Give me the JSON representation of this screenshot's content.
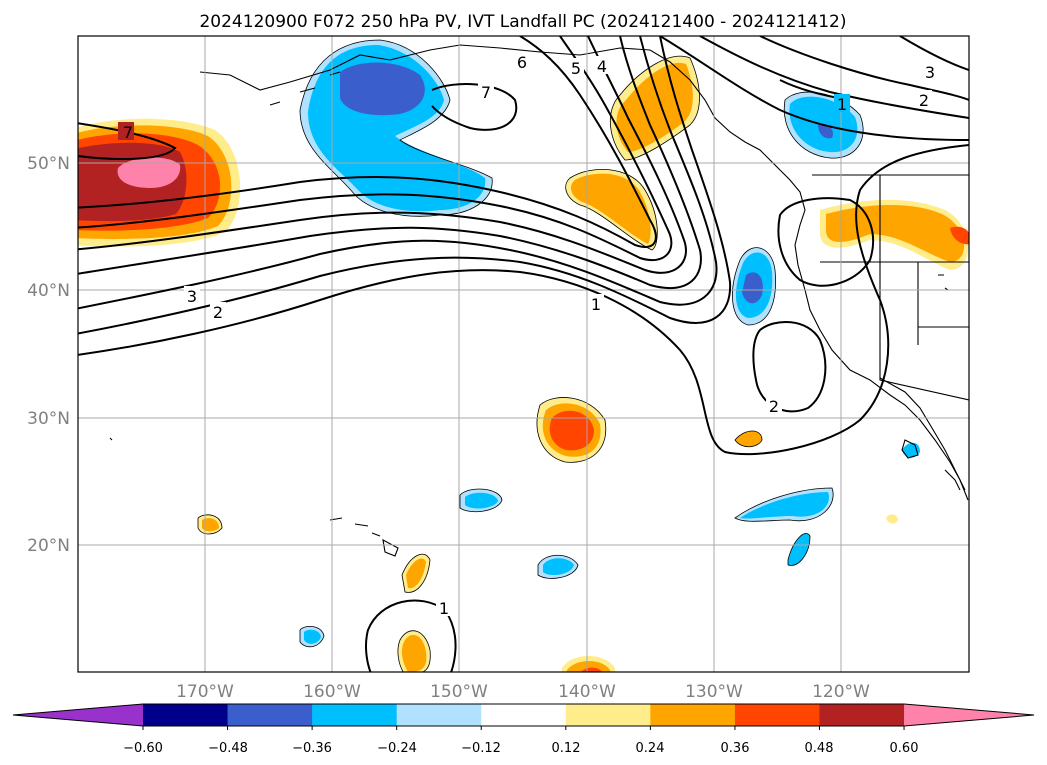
{
  "title": "2024120900 F072 250 hPa PV, IVT Landfall PC (2024121400 - 2024121412)",
  "lat_labels": [
    "50°N",
    "40°N",
    "30°N",
    "20°N"
  ],
  "lon_labels": [
    "170°W",
    "160°W",
    "150°W",
    "140°W",
    "130°W",
    "120°W"
  ],
  "colorbar": {
    "ticks": [
      "−0.60",
      "−0.48",
      "−0.36",
      "−0.24",
      "−0.12",
      "0.12",
      "0.24",
      "0.36",
      "0.48",
      "0.60"
    ],
    "colors": [
      "#9932cc",
      "#00008b",
      "#3a5fcd",
      "#00bfff",
      "#b0e2ff",
      "#ffffff",
      "#ffec8b",
      "#ffa500",
      "#ff4500",
      "#b22222",
      "#ff82ab"
    ]
  },
  "pv_contour_labels": [
    "7",
    "7",
    "6",
    "5",
    "4",
    "3",
    "2",
    "1",
    "3",
    "2",
    "1",
    "2",
    "1"
  ],
  "map_extent": {
    "lon_range": [
      "180°W",
      "110°W"
    ],
    "lat_range": [
      "10°N",
      "60°N"
    ],
    "gridlines": true
  }
}
